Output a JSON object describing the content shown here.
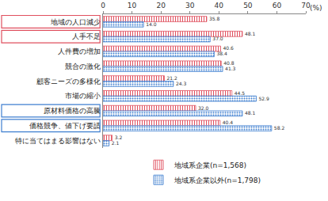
{
  "chart_data": {
    "type": "bar",
    "orientation": "horizontal",
    "xlabel": "(%)",
    "categories": [
      "地域の人口減少",
      "人手不足",
      "人件費の増加",
      "競合の激化",
      "顧客ニーズの多様化",
      "市場の縮小",
      "原材料価格の高騰",
      "価格競争、値下げ要請",
      "特に当てはまる影響はない"
    ],
    "series": [
      {
        "name": "地域系企業(n=1,568)",
        "color": "#e0505f",
        "marker": "vertical_lines",
        "values": [
          35.8,
          48.1,
          40.6,
          40.8,
          21.2,
          44.5,
          32.0,
          40.4,
          3.2
        ],
        "value_labels": [
          "35.8",
          "48.1",
          "40.6",
          "40.8",
          "21.2",
          "44.5",
          "32.0",
          "40.4",
          "3.2"
        ]
      },
      {
        "name": "地域系企業以外(n=1,798)",
        "color": "#3f7fd0",
        "marker": "dots",
        "values": [
          14.0,
          37.0,
          38.4,
          41.3,
          24.3,
          52.9,
          48.1,
          58.2,
          2.1
        ],
        "value_labels": [
          "14.0",
          "37.0",
          "38.4",
          "41.3",
          "24.3",
          "52.9",
          "48.1",
          "58.2",
          "2.1"
        ]
      }
    ],
    "xlim": [
      0,
      70
    ],
    "xticks": [
      0,
      10,
      20,
      30,
      40,
      50,
      60,
      70
    ],
    "grid": false,
    "data_labels": true,
    "legend": "bottom"
  }
}
